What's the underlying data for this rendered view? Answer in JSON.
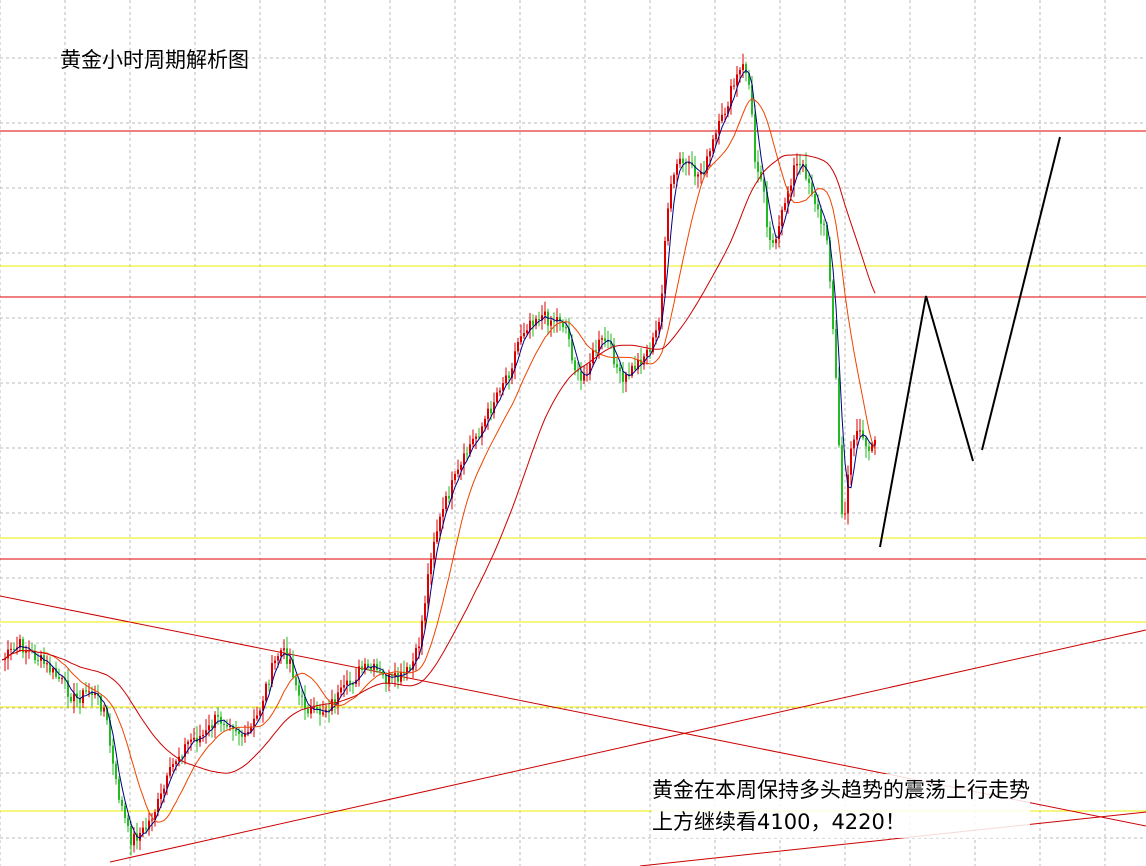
{
  "chart_data": {
    "type": "candlestick",
    "title": "黄金小时周期解析图",
    "annotation_lines": [
      "黄金在本周保持多头趋势的震荡上行走势",
      "上方继续看4100，4220！"
    ],
    "colors": {
      "up_candle": "#dd0000",
      "down_candle": "#22bb22",
      "ma_fast": "#000080",
      "ma_mid": "#ee4400",
      "ma_slow": "#cc0000",
      "horizontal_red": "#e00000",
      "horizontal_yellow": "#eeee00",
      "trendline": "#cc0000",
      "forecast_path": "#000000",
      "grid": "#bbbbbb"
    },
    "grid": true,
    "x_labels_shown": false,
    "y_labels_shown": false,
    "moving_averages": [
      "fast",
      "mid",
      "slow"
    ],
    "horizontal_levels": [
      {
        "color": "red",
        "role": "resistance"
      },
      {
        "color": "yellow",
        "role": "minor"
      },
      {
        "color": "red",
        "role": "resistance"
      },
      {
        "color": "yellow",
        "role": "minor"
      },
      {
        "color": "red",
        "role": "support"
      },
      {
        "color": "yellow",
        "role": "minor"
      },
      {
        "color": "yellow",
        "role": "minor"
      },
      {
        "color": "yellow",
        "role": "minor"
      }
    ],
    "trendlines": [
      {
        "direction": "descending"
      },
      {
        "direction": "ascending"
      },
      {
        "direction": "ascending"
      }
    ],
    "forecast_path": "up-down-up zigzag"
  }
}
